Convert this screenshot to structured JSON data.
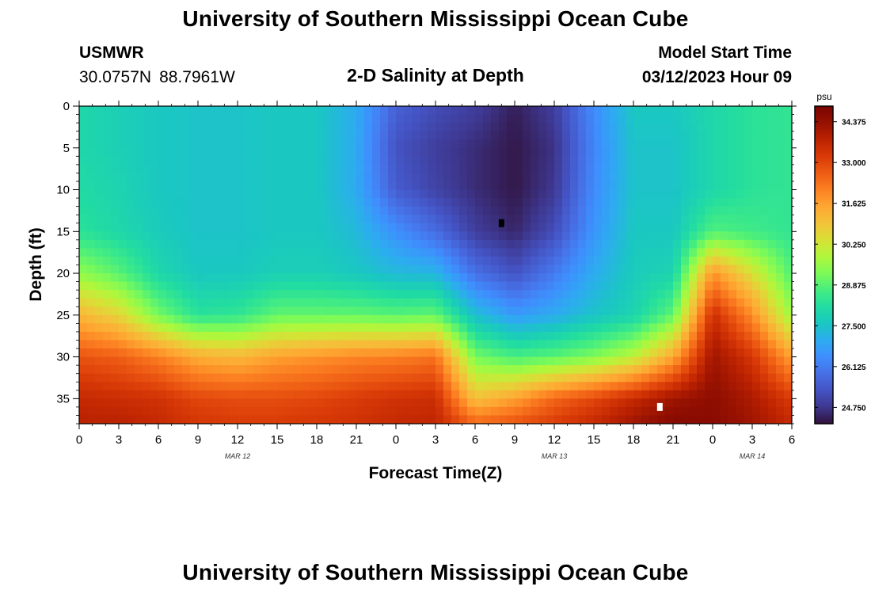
{
  "header": {
    "title": "University of Southern Mississippi Ocean Cube",
    "station": "USMWR",
    "lat": "30.0757N",
    "lon": "88.7961W",
    "subtitle": "2-D Salinity at Depth",
    "start_label": "Model Start Time",
    "start_value": "03/12/2023 Hour 09"
  },
  "footer": {
    "title": "University of Southern Mississippi Ocean Cube"
  },
  "chart_data": {
    "type": "heatmap",
    "title": "2-D Salinity at Depth",
    "xlabel": "Forecast Time(Z)",
    "ylabel": "Depth (ft)",
    "x_ticks": [
      "0",
      "3",
      "6",
      "9",
      "12",
      "15",
      "18",
      "21",
      "0",
      "3",
      "6",
      "9",
      "12",
      "15",
      "18",
      "21",
      "0",
      "3",
      "6"
    ],
    "x_tick_hours": [
      0,
      3,
      6,
      9,
      12,
      15,
      18,
      21,
      24,
      27,
      30,
      33,
      36,
      39,
      42,
      45,
      48,
      51,
      54
    ],
    "x_range_hours": [
      0,
      54
    ],
    "date_labels": [
      {
        "text": "MAR 12",
        "hour": 12
      },
      {
        "text": "MAR 13",
        "hour": 36
      },
      {
        "text": "MAR 14",
        "hour": 51
      }
    ],
    "y_ticks": [
      0,
      5,
      10,
      15,
      20,
      25,
      30,
      35
    ],
    "ylim": [
      0,
      38
    ],
    "y_inverted": true,
    "colorbar": {
      "unit": "psu",
      "min": 24.2,
      "max": 34.9,
      "ticks": [
        "34.375",
        "33.000",
        "31.625",
        "30.250",
        "28.875",
        "27.500",
        "26.125",
        "24.750"
      ],
      "colors": [
        "#30123b",
        "#3e378f",
        "#4454c4",
        "#4770e6",
        "#3f8efe",
        "#2dacf0",
        "#1ac7c2",
        "#21dca2",
        "#46ed80",
        "#7dfa58",
        "#b0f73c",
        "#d8e036",
        "#f3c23a",
        "#fea732",
        "#fc8022",
        "#ee5c14",
        "#d93a07",
        "#bb2201",
        "#961101",
        "#7a0403"
      ]
    },
    "min_marker": {
      "hour": 32,
      "depth": 14,
      "color": "#000000"
    },
    "max_marker": {
      "hour": 44,
      "depth": 36,
      "color": "#ffffff"
    },
    "salinity_profiles": {
      "hours": [
        0,
        3,
        6,
        9,
        12,
        15,
        18,
        21,
        24,
        27,
        30,
        33,
        36,
        39,
        42,
        45,
        48,
        51,
        54
      ],
      "depths": [
        0,
        5,
        10,
        15,
        20,
        25,
        30,
        35,
        38
      ],
      "values": [
        [
          28.0,
          28.0,
          28.1,
          28.3,
          29.5,
          31.2,
          32.8,
          33.6,
          33.8
        ],
        [
          27.8,
          27.8,
          27.9,
          28.0,
          28.9,
          30.6,
          32.6,
          33.5,
          33.8
        ],
        [
          27.6,
          27.6,
          27.6,
          27.7,
          28.0,
          29.2,
          32.1,
          33.4,
          33.6
        ],
        [
          27.5,
          27.5,
          27.5,
          27.5,
          27.6,
          28.3,
          31.4,
          33.0,
          33.3
        ],
        [
          27.5,
          27.5,
          27.5,
          27.5,
          27.6,
          28.4,
          31.2,
          32.9,
          33.2
        ],
        [
          27.6,
          27.6,
          27.6,
          27.6,
          27.8,
          29.0,
          31.6,
          32.9,
          33.2
        ],
        [
          27.6,
          27.6,
          27.6,
          27.6,
          27.8,
          29.0,
          31.8,
          33.0,
          33.3
        ],
        [
          27.0,
          27.0,
          27.0,
          27.3,
          27.6,
          29.0,
          32.0,
          33.2,
          33.4
        ],
        [
          25.6,
          25.3,
          25.5,
          26.5,
          27.3,
          28.9,
          32.1,
          33.4,
          33.6
        ],
        [
          25.2,
          24.9,
          25.0,
          25.8,
          27.2,
          29.0,
          32.3,
          33.5,
          33.7
        ],
        [
          24.9,
          24.6,
          24.6,
          24.9,
          25.9,
          27.4,
          29.2,
          31.0,
          32.5
        ],
        [
          24.4,
          24.3,
          24.3,
          24.5,
          25.3,
          26.7,
          28.7,
          31.6,
          32.8
        ],
        [
          24.9,
          24.7,
          24.8,
          25.2,
          26.1,
          27.0,
          28.9,
          32.5,
          33.2
        ],
        [
          26.4,
          26.3,
          26.4,
          26.6,
          27.0,
          27.5,
          29.3,
          33.0,
          33.6
        ],
        [
          27.6,
          27.5,
          27.5,
          27.6,
          27.7,
          27.9,
          30.0,
          33.6,
          34.2
        ],
        [
          27.6,
          27.5,
          27.5,
          27.6,
          27.9,
          29.0,
          31.5,
          34.2,
          34.7
        ],
        [
          28.0,
          28.0,
          28.0,
          28.8,
          31.8,
          33.5,
          34.2,
          34.5,
          34.6
        ],
        [
          28.3,
          28.3,
          28.3,
          28.6,
          30.4,
          31.9,
          33.3,
          34.0,
          34.2
        ],
        [
          28.4,
          28.4,
          28.4,
          28.4,
          28.8,
          29.6,
          31.6,
          33.2,
          33.6
        ]
      ]
    }
  }
}
